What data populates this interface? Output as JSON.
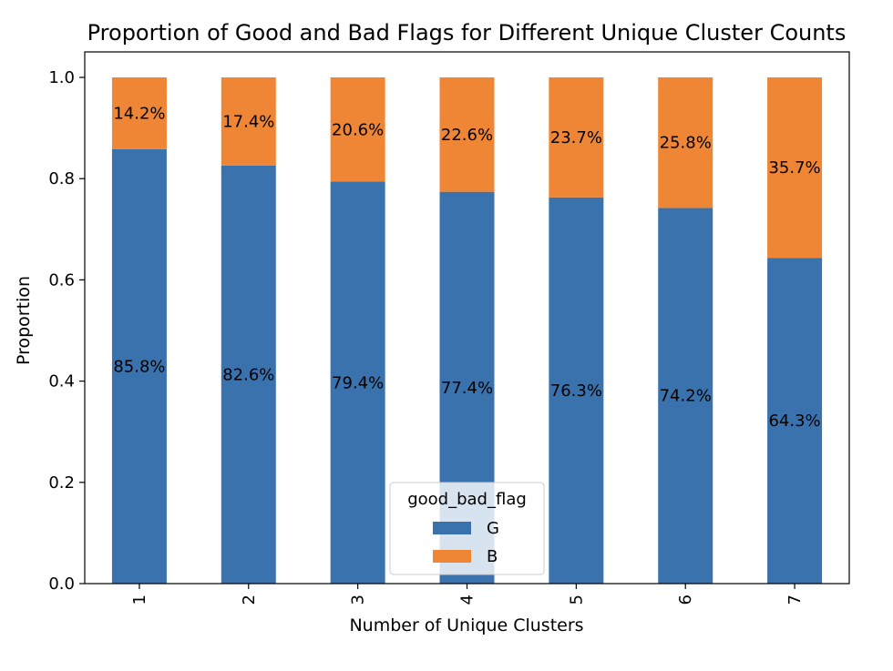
{
  "chart_data": {
    "type": "bar",
    "stacked": true,
    "title": "Proportion of Good and Bad Flags for Different Unique Cluster Counts",
    "xlabel": "Number of Unique Clusters",
    "ylabel": "Proportion",
    "categories": [
      "1",
      "2",
      "3",
      "4",
      "5",
      "6",
      "7"
    ],
    "series": [
      {
        "name": "G",
        "color": "#3a72ae",
        "values": [
          0.858,
          0.826,
          0.794,
          0.774,
          0.763,
          0.742,
          0.643
        ],
        "labels": [
          "85.8%",
          "82.6%",
          "79.4%",
          "77.4%",
          "76.3%",
          "74.2%",
          "64.3%"
        ]
      },
      {
        "name": "B",
        "color": "#ef8636",
        "values": [
          0.142,
          0.174,
          0.206,
          0.226,
          0.237,
          0.258,
          0.357
        ],
        "labels": [
          "14.2%",
          "17.4%",
          "20.6%",
          "22.6%",
          "23.7%",
          "25.8%",
          "35.7%"
        ]
      }
    ],
    "ylim": [
      0,
      1.0
    ],
    "yticks": [
      "0.0",
      "0.2",
      "0.4",
      "0.6",
      "0.8",
      "1.0"
    ],
    "ytick_values": [
      0,
      0.2,
      0.4,
      0.6,
      0.8,
      1.0
    ],
    "x_tick_rotation": "vertical",
    "grid": false,
    "legend": {
      "title": "good_bad_flag",
      "placement": "lower-center"
    }
  }
}
